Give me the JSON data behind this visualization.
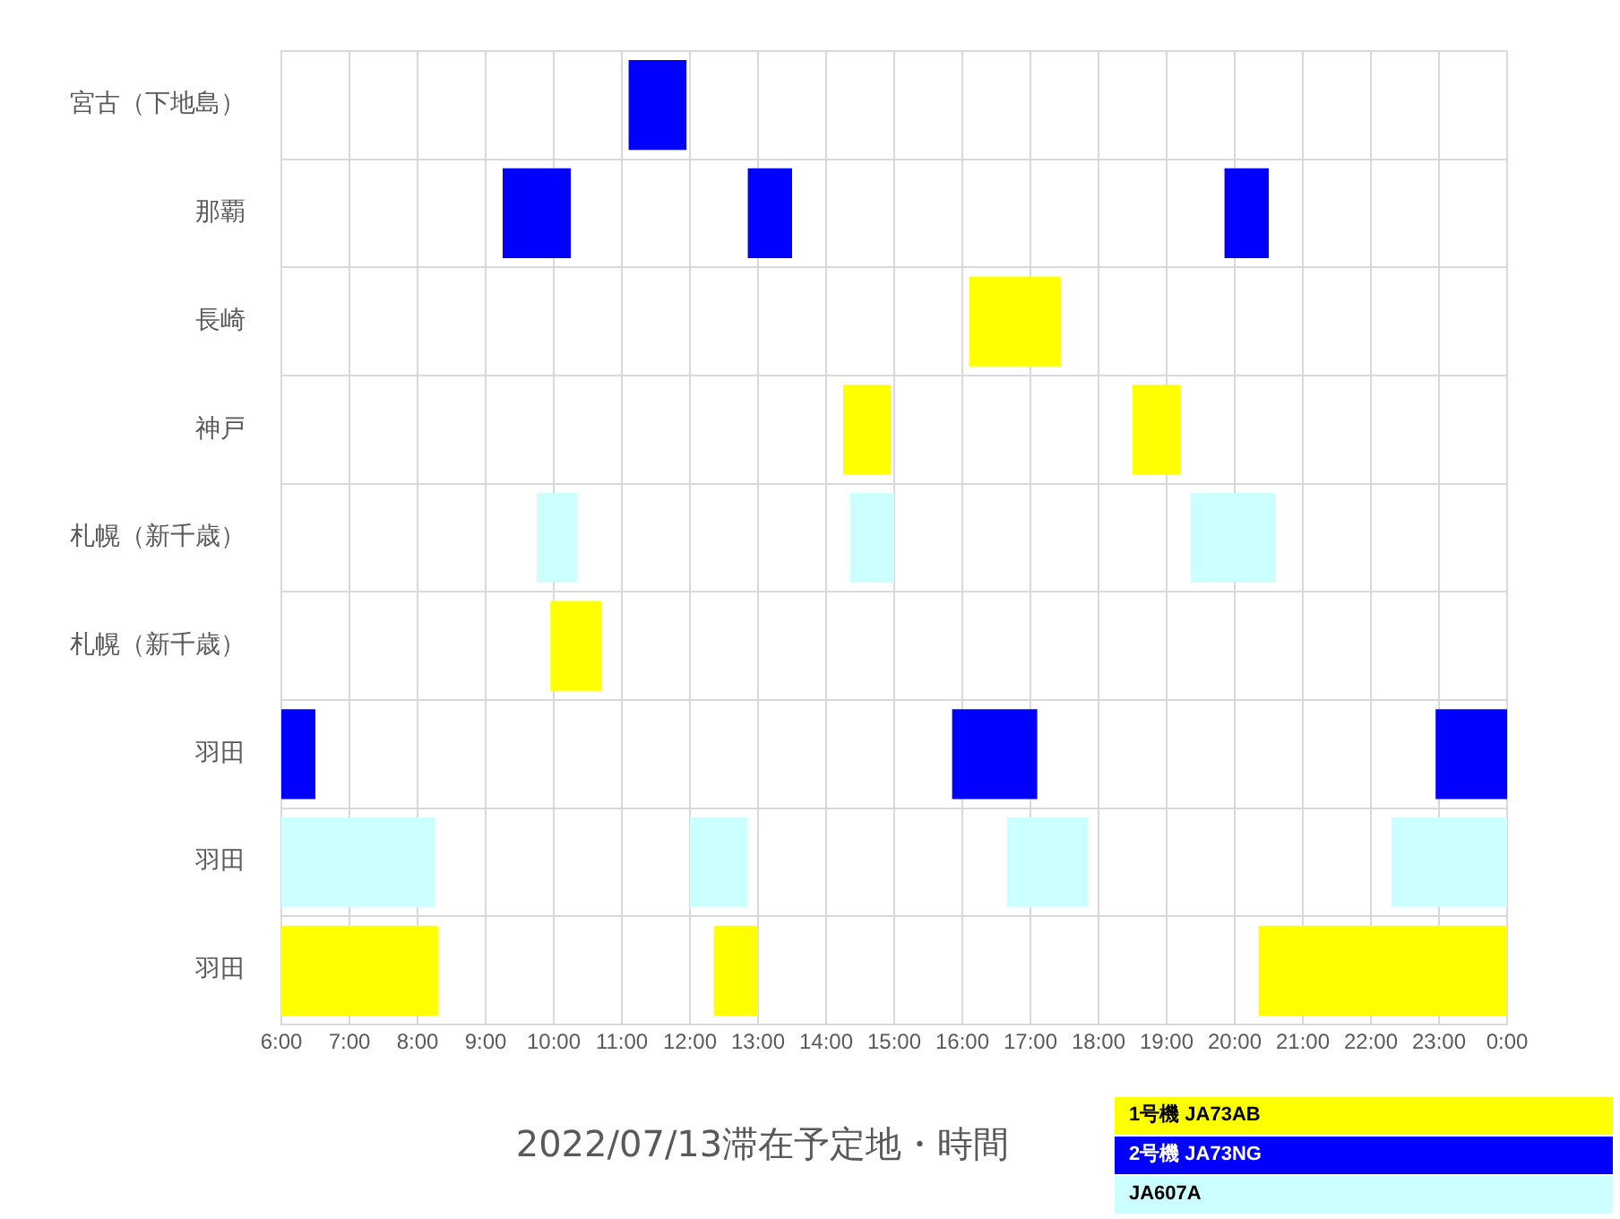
{
  "chart_data": {
    "type": "bar",
    "orientation": "horizontal",
    "title": "2022/07/13滞在予定地・時間",
    "categories": [
      "宮古（下地島）",
      "那覇",
      "長崎",
      "神戸",
      "札幌（新千歳）",
      "札幌（新千歳）",
      "羽田",
      "羽田",
      "羽田"
    ],
    "series": [
      {
        "name": "1号機 JA73AB",
        "color": "#ffff00",
        "base": [
          null,
          null,
          16.1,
          14.25,
          null,
          9.95,
          null,
          null,
          6
        ],
        "values": [
          null,
          null,
          1.35,
          0.7,
          null,
          0.75,
          null,
          null,
          2.3
        ]
      },
      {
        "color": "#ffff00",
        "base": [
          null,
          null,
          null,
          18.5,
          null,
          null,
          null,
          null,
          12.35
        ],
        "values": [
          null,
          null,
          null,
          0.7,
          null,
          null,
          null,
          null,
          0.65
        ]
      },
      {
        "color": "#ffff00",
        "base": [
          null,
          null,
          null,
          null,
          null,
          null,
          null,
          null,
          20.35
        ],
        "values": [
          null,
          null,
          null,
          null,
          null,
          null,
          null,
          null,
          3.65
        ]
      },
      {
        "name": "2号機 JA73NG",
        "color": "#0000ff",
        "base": [
          11.1,
          9.25,
          null,
          null,
          null,
          null,
          6,
          null,
          null
        ],
        "values": [
          0.85,
          1,
          null,
          null,
          null,
          null,
          0.5,
          null,
          null
        ]
      },
      {
        "color": "#0000ff",
        "base": [
          null,
          12.85,
          null,
          null,
          null,
          null,
          15.85,
          null,
          null
        ],
        "values": [
          null,
          0.65,
          null,
          null,
          null,
          null,
          1.25,
          null,
          null
        ]
      },
      {
        "color": "#0000ff",
        "base": [
          null,
          19.85,
          null,
          null,
          null,
          null,
          22.95,
          null,
          null
        ],
        "values": [
          null,
          0.65,
          null,
          null,
          null,
          null,
          1.05,
          null,
          null
        ]
      },
      {
        "name": "JA607A",
        "color": "#ccffff",
        "base": [
          null,
          null,
          null,
          null,
          9.75,
          null,
          null,
          6,
          null
        ],
        "values": [
          null,
          null,
          null,
          null,
          0.6,
          null,
          null,
          2.25,
          null
        ]
      },
      {
        "color": "#ccffff",
        "base": [
          null,
          null,
          null,
          null,
          14.35,
          null,
          null,
          12,
          null
        ],
        "values": [
          null,
          null,
          null,
          null,
          0.65,
          null,
          null,
          0.85,
          null
        ]
      },
      {
        "color": "#ccffff",
        "base": [
          null,
          null,
          null,
          null,
          19.35,
          null,
          null,
          16.65,
          null
        ],
        "values": [
          null,
          null,
          null,
          null,
          1.25,
          null,
          null,
          1.2,
          null
        ]
      },
      {
        "color": "#ccffff",
        "base": [
          null,
          null,
          null,
          null,
          null,
          null,
          null,
          22.3,
          null
        ],
        "values": [
          null,
          null,
          null,
          null,
          null,
          null,
          null,
          1.7,
          null
        ]
      }
    ],
    "xlim": [
      6,
      24
    ],
    "xticks": [
      {
        "value": 6,
        "label": "6:00"
      },
      {
        "value": 7,
        "label": "7:00"
      },
      {
        "value": 8,
        "label": "8:00"
      },
      {
        "value": 9,
        "label": "9:00"
      },
      {
        "value": 10,
        "label": "10:00"
      },
      {
        "value": 11,
        "label": "11:00"
      },
      {
        "value": 12,
        "label": "12:00"
      },
      {
        "value": 13,
        "label": "13:00"
      },
      {
        "value": 14,
        "label": "14:00"
      },
      {
        "value": 15,
        "label": "15:00"
      },
      {
        "value": 16,
        "label": "16:00"
      },
      {
        "value": 17,
        "label": "17:00"
      },
      {
        "value": 18,
        "label": "18:00"
      },
      {
        "value": 19,
        "label": "19:00"
      },
      {
        "value": 20,
        "label": "20:00"
      },
      {
        "value": 21,
        "label": "21:00"
      },
      {
        "value": 22,
        "label": "22:00"
      },
      {
        "value": 23,
        "label": "23:00"
      },
      {
        "value": 24,
        "label": "0:00"
      }
    ],
    "grid": true,
    "legend": "bottom right"
  }
}
